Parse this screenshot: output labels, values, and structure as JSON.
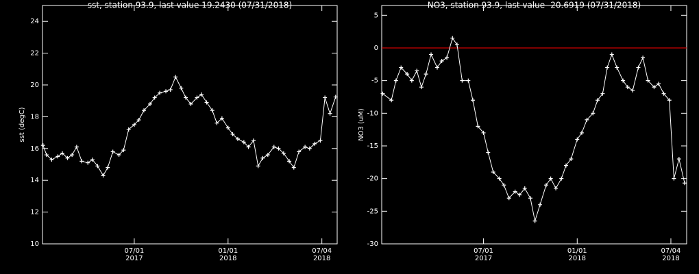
{
  "chart_data": [
    {
      "type": "line",
      "title": "sst, station 93.9, last value 19.2430 (07/31/2018)",
      "y_label": "sst (degC)",
      "color": "#ffffff",
      "marker": "plus",
      "x": [
        "2017-01-03",
        "2017-01-10",
        "2017-01-20",
        "2017-02-01",
        "2017-02-10",
        "2017-02-20",
        "2017-03-01",
        "2017-03-10",
        "2017-03-20",
        "2017-04-01",
        "2017-04-10",
        "2017-04-20",
        "2017-05-01",
        "2017-05-10",
        "2017-05-20",
        "2017-06-01",
        "2017-06-10",
        "2017-06-20",
        "2017-07-01",
        "2017-07-10",
        "2017-07-20",
        "2017-08-01",
        "2017-08-10",
        "2017-08-20",
        "2017-09-01",
        "2017-09-10",
        "2017-09-20",
        "2017-10-01",
        "2017-10-10",
        "2017-10-20",
        "2017-11-01",
        "2017-11-10",
        "2017-11-20",
        "2017-12-01",
        "2017-12-10",
        "2017-12-20",
        "2018-01-01",
        "2018-01-10",
        "2018-01-20",
        "2018-02-01",
        "2018-02-10",
        "2018-02-20",
        "2018-03-01",
        "2018-03-10",
        "2018-03-20",
        "2018-04-01",
        "2018-04-10",
        "2018-04-20",
        "2018-05-01",
        "2018-05-10",
        "2018-05-20",
        "2018-06-01",
        "2018-06-10",
        "2018-06-20",
        "2018-07-01",
        "2018-07-10",
        "2018-07-20",
        "2018-07-31"
      ],
      "values": [
        16.2,
        15.6,
        15.3,
        15.5,
        15.7,
        15.4,
        15.6,
        16.1,
        15.2,
        15.1,
        15.3,
        14.9,
        14.3,
        14.8,
        15.8,
        15.6,
        15.9,
        17.2,
        17.5,
        17.8,
        18.4,
        18.8,
        19.2,
        19.5,
        19.6,
        19.7,
        20.5,
        19.8,
        19.2,
        18.8,
        19.2,
        19.4,
        18.9,
        18.4,
        17.6,
        17.9,
        17.3,
        16.9,
        16.6,
        16.4,
        16.1,
        16.5,
        14.9,
        15.4,
        15.6,
        16.1,
        16.0,
        15.7,
        15.2,
        14.8,
        15.8,
        16.1,
        16.0,
        16.3,
        16.5,
        19.2,
        18.2,
        19.243
      ],
      "xlim": [
        "2017-01-02",
        "2018-08-03"
      ],
      "xticks": [
        {
          "value": "2017-07-01",
          "label": "07/01\n2017"
        },
        {
          "value": "2018-01-01",
          "label": "01/01\n2018"
        },
        {
          "value": "2018-07-04",
          "label": "07/04\n2018"
        }
      ],
      "ylim": [
        10,
        25
      ],
      "yticks": [
        10,
        12,
        14,
        16,
        18,
        20,
        22,
        24
      ]
    },
    {
      "type": "line",
      "title": "NO3, station 93.9, last value -20.6919 (07/31/2018)",
      "y_label": "NO3 (uM)",
      "color": "#ffffff",
      "marker": "plus",
      "x": [
        "2016-12-15",
        "2017-01-01",
        "2017-01-10",
        "2017-01-20",
        "2017-02-01",
        "2017-02-10",
        "2017-02-20",
        "2017-03-01",
        "2017-03-10",
        "2017-03-20",
        "2017-04-01",
        "2017-04-10",
        "2017-04-20",
        "2017-05-01",
        "2017-05-10",
        "2017-05-20",
        "2017-06-01",
        "2017-06-10",
        "2017-06-20",
        "2017-07-01",
        "2017-07-10",
        "2017-07-20",
        "2017-08-01",
        "2017-08-10",
        "2017-08-20",
        "2017-09-01",
        "2017-09-10",
        "2017-09-20",
        "2017-10-01",
        "2017-10-10",
        "2017-10-20",
        "2017-11-01",
        "2017-11-10",
        "2017-11-20",
        "2017-12-01",
        "2017-12-10",
        "2017-12-20",
        "2018-01-01",
        "2018-01-10",
        "2018-01-20",
        "2018-02-01",
        "2018-02-10",
        "2018-02-20",
        "2018-03-01",
        "2018-03-10",
        "2018-03-20",
        "2018-04-01",
        "2018-04-10",
        "2018-04-20",
        "2018-05-01",
        "2018-05-10",
        "2018-05-20",
        "2018-06-01",
        "2018-06-10",
        "2018-06-20",
        "2018-07-01",
        "2018-07-10",
        "2018-07-20",
        "2018-07-31"
      ],
      "values": [
        -7,
        -8,
        -5,
        -3,
        -4,
        -5,
        -3.5,
        -6,
        -4,
        -1,
        -3,
        -2,
        -1.5,
        1.5,
        0.5,
        -5,
        -5,
        -8,
        -12,
        -13,
        -16,
        -19,
        -20,
        -21,
        -23,
        -22,
        -22.5,
        -21.5,
        -23,
        -26.5,
        -24,
        -21,
        -20,
        -21.5,
        -20,
        -18,
        -17,
        -14,
        -13,
        -11,
        -10,
        -8,
        -7,
        -3,
        -1,
        -3,
        -5,
        -6,
        -6.5,
        -3,
        -1.5,
        -5,
        -6,
        -5.5,
        -7,
        -8,
        -20,
        -17,
        -20.6919
      ],
      "xlim": [
        "2016-12-13",
        "2018-08-04"
      ],
      "xticks": [
        {
          "value": "2017-07-01",
          "label": "07/01\n2017"
        },
        {
          "value": "2018-01-01",
          "label": "01/01\n2018"
        },
        {
          "value": "2018-07-04",
          "label": "07/04\n2018"
        }
      ],
      "ylim": [
        -30,
        6.5
      ],
      "yticks": [
        -30,
        -25,
        -20,
        -15,
        -10,
        -5,
        0,
        5
      ],
      "hline": {
        "value": 0,
        "color": "#cc0000"
      }
    }
  ]
}
